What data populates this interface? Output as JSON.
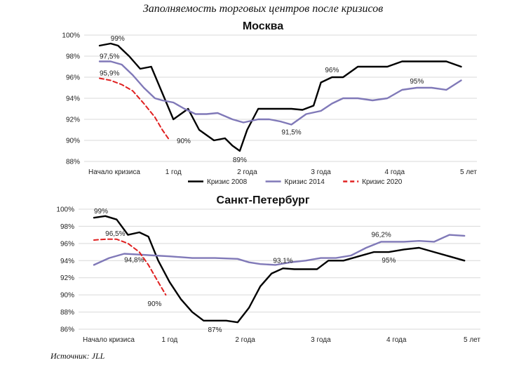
{
  "title": "Заполняемость торговых центров после кризисов",
  "source": "Источник: JLL",
  "colors": {
    "crisis2008": "#000000",
    "crisis2014": "#8079b8",
    "crisis2020": "#e02020",
    "grid": "#d9d9d9"
  },
  "chart_data": [
    {
      "type": "line",
      "title": "Москва",
      "x_ticks": [
        {
          "x": 0,
          "label": "Начало кризиса"
        },
        {
          "x": 1,
          "label": "1 год"
        },
        {
          "x": 2,
          "label": "2 года"
        },
        {
          "x": 3,
          "label": "3 года"
        },
        {
          "x": 4,
          "label": "4 года"
        },
        {
          "x": 5,
          "label": "5 лет"
        }
      ],
      "xlim": [
        0,
        5
      ],
      "ylim": [
        88,
        100
      ],
      "y_ticks": [
        88,
        90,
        92,
        94,
        96,
        98,
        100
      ],
      "y_tick_labels": [
        "88%",
        "90%",
        "92%",
        "94%",
        "96%",
        "98%",
        "100%"
      ],
      "grid": true,
      "legend_position": "bottom",
      "series": [
        {
          "name": "Кризис 2008",
          "color": "#000000",
          "dash": false,
          "x": [
            0,
            0.15,
            0.25,
            0.4,
            0.55,
            0.7,
            0.85,
            1.0,
            1.2,
            1.35,
            1.55,
            1.7,
            1.8,
            1.9,
            2.0,
            2.15,
            2.3,
            2.45,
            2.6,
            2.75,
            2.9,
            3.0,
            3.15,
            3.3,
            3.5,
            3.7,
            3.9,
            4.1,
            4.3,
            4.5,
            4.7,
            4.9
          ],
          "y": [
            99,
            99.2,
            99,
            98,
            96.8,
            97,
            94.5,
            92,
            93,
            91,
            90,
            90.2,
            89.5,
            89,
            91,
            93,
            93,
            93,
            93,
            92.9,
            93.3,
            95.5,
            96,
            96,
            97,
            97,
            97,
            97.5,
            97.5,
            97.5,
            97.5,
            97
          ]
        },
        {
          "name": "Кризис 2014",
          "color": "#8079b8",
          "dash": false,
          "x": [
            0,
            0.15,
            0.3,
            0.45,
            0.6,
            0.75,
            0.85,
            1.0,
            1.15,
            1.3,
            1.45,
            1.6,
            1.8,
            1.95,
            2.15,
            2.3,
            2.45,
            2.6,
            2.8,
            3.0,
            3.15,
            3.3,
            3.5,
            3.7,
            3.9,
            4.1,
            4.3,
            4.5,
            4.7,
            4.9
          ],
          "y": [
            97.5,
            97.5,
            97.2,
            96.2,
            95,
            94,
            93.8,
            93.6,
            93,
            92.5,
            92.5,
            92.6,
            92,
            91.7,
            92,
            92,
            91.8,
            91.5,
            92.5,
            92.8,
            93.5,
            94,
            94,
            93.8,
            94,
            94.8,
            95,
            95,
            94.8,
            95.7
          ]
        },
        {
          "name": "Кризис 2020",
          "color": "#e02020",
          "dash": true,
          "x": [
            0,
            0.15,
            0.3,
            0.45,
            0.6,
            0.75,
            0.85,
            0.95
          ],
          "y": [
            95.9,
            95.7,
            95.3,
            94.7,
            93.5,
            92.2,
            91,
            90
          ]
        }
      ],
      "annotations": [
        {
          "text": "99%",
          "x": 0.15,
          "y": 99.2,
          "anchor": "start",
          "dx": 0,
          "dy": -4
        },
        {
          "text": "97,5%",
          "x": 0.0,
          "y": 97.5,
          "anchor": "start",
          "dx": 0,
          "dy": -4
        },
        {
          "text": "95,9%",
          "x": 0.0,
          "y": 95.9,
          "anchor": "start",
          "dx": 0,
          "dy": -4
        },
        {
          "text": "90%",
          "x": 0.95,
          "y": 90,
          "anchor": "start",
          "dx": 10,
          "dy": 4
        },
        {
          "text": "89%",
          "x": 1.9,
          "y": 89,
          "anchor": "middle",
          "dx": 0,
          "dy": 16
        },
        {
          "text": "91,5%",
          "x": 2.6,
          "y": 91.5,
          "anchor": "middle",
          "dx": 0,
          "dy": 14
        },
        {
          "text": "96%",
          "x": 3.15,
          "y": 96,
          "anchor": "middle",
          "dx": 0,
          "dy": -7
        },
        {
          "text": "95%",
          "x": 4.3,
          "y": 95,
          "anchor": "middle",
          "dx": 0,
          "dy": -6
        }
      ]
    },
    {
      "type": "line",
      "title": "Санкт-Петербург",
      "x_ticks": [
        {
          "x": 0,
          "label": "Начало кризиса"
        },
        {
          "x": 1,
          "label": "1 год"
        },
        {
          "x": 2,
          "label": "2 года"
        },
        {
          "x": 3,
          "label": "3 года"
        },
        {
          "x": 4,
          "label": "4 года"
        },
        {
          "x": 5,
          "label": "5 лет"
        }
      ],
      "xlim": [
        0,
        5
      ],
      "ylim": [
        86,
        100
      ],
      "y_ticks": [
        86,
        88,
        90,
        92,
        94,
        96,
        98,
        100
      ],
      "y_tick_labels": [
        "86%",
        "88%",
        "90%",
        "92%",
        "94%",
        "96%",
        "98%",
        "100%"
      ],
      "grid": true,
      "legend_position": "bottom",
      "series": [
        {
          "name": "Кризис 2008",
          "color": "#000000",
          "dash": false,
          "x": [
            0,
            0.15,
            0.3,
            0.45,
            0.6,
            0.72,
            0.85,
            1.0,
            1.15,
            1.3,
            1.45,
            1.6,
            1.75,
            1.9,
            2.05,
            2.2,
            2.35,
            2.5,
            2.65,
            2.8,
            2.95,
            3.1,
            3.3,
            3.5,
            3.7,
            3.9,
            4.1,
            4.3,
            4.5,
            4.7,
            4.9
          ],
          "y": [
            99,
            99.2,
            98.8,
            97,
            97.3,
            96.8,
            94,
            91.5,
            89.5,
            88,
            87,
            87,
            87,
            86.8,
            88.5,
            91,
            92.5,
            93.1,
            93,
            93,
            93,
            94,
            94,
            94.5,
            95,
            95,
            95.3,
            95.5,
            95,
            94.5,
            94
          ]
        },
        {
          "name": "Кризис 2014",
          "color": "#8079b8",
          "dash": false,
          "x": [
            0,
            0.2,
            0.4,
            0.6,
            0.8,
            1.0,
            1.3,
            1.6,
            1.9,
            2.05,
            2.2,
            2.4,
            2.6,
            2.8,
            3.0,
            3.2,
            3.4,
            3.6,
            3.8,
            3.9,
            4.1,
            4.3,
            4.5,
            4.7,
            4.9
          ],
          "y": [
            93.5,
            94.3,
            94.8,
            94.7,
            94.6,
            94.5,
            94.3,
            94.3,
            94.2,
            93.8,
            93.6,
            93.5,
            93.8,
            94,
            94.3,
            94.3,
            94.6,
            95.5,
            96.2,
            96.2,
            96.2,
            96.3,
            96.2,
            97,
            96.9
          ]
        },
        {
          "name": "Кризис 2020",
          "color": "#e02020",
          "dash": true,
          "x": [
            0,
            0.15,
            0.3,
            0.45,
            0.6,
            0.72,
            0.85,
            0.95
          ],
          "y": [
            96.4,
            96.5,
            96.5,
            96,
            95,
            93.5,
            91.5,
            90
          ]
        }
      ],
      "annotations": [
        {
          "text": "99%",
          "x": 0.0,
          "y": 99,
          "anchor": "start",
          "dx": 0,
          "dy": -6
        },
        {
          "text": "96,5%",
          "x": 0.15,
          "y": 96.5,
          "anchor": "start",
          "dx": 0,
          "dy": -5
        },
        {
          "text": "94,8%",
          "x": 0.4,
          "y": 94.8,
          "anchor": "start",
          "dx": 0,
          "dy": 12
        },
        {
          "text": "90%",
          "x": 0.95,
          "y": 90,
          "anchor": "end",
          "dx": -6,
          "dy": 16
        },
        {
          "text": "87%",
          "x": 1.6,
          "y": 87,
          "anchor": "middle",
          "dx": 0,
          "dy": 16
        },
        {
          "text": "93,1%",
          "x": 2.5,
          "y": 93.1,
          "anchor": "middle",
          "dx": 0,
          "dy": -8
        },
        {
          "text": "95%",
          "x": 3.9,
          "y": 95,
          "anchor": "middle",
          "dx": 0,
          "dy": 15
        },
        {
          "text": "96,2%",
          "x": 3.8,
          "y": 96.2,
          "anchor": "middle",
          "dx": 0,
          "dy": -7
        }
      ]
    }
  ]
}
